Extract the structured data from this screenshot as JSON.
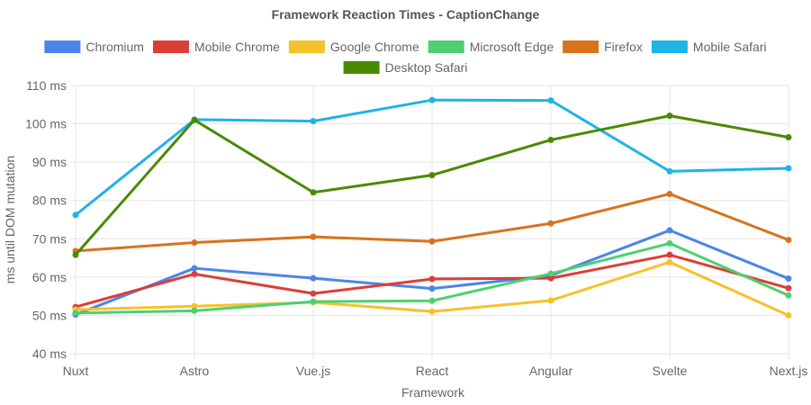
{
  "chart_data": {
    "type": "line",
    "title": "Framework Reaction Times - CaptionChange",
    "xlabel": "Framework",
    "ylabel": "ms until DOM mutation",
    "categories": [
      "Nuxt",
      "Astro",
      "Vue.js",
      "React",
      "Angular",
      "Svelte",
      "Next.js"
    ],
    "ylim": [
      40,
      110
    ],
    "yticks": [
      40,
      50,
      60,
      70,
      80,
      90,
      100,
      110
    ],
    "ytick_labels": [
      "40 ms",
      "50 ms",
      "60 ms",
      "70 ms",
      "80 ms",
      "90 ms",
      "100 ms",
      "110 ms"
    ],
    "grid": true,
    "legend_position": "top",
    "series": [
      {
        "name": "Chromium",
        "color": "#4a86e8",
        "values": [
          50.2,
          62.3,
          59.7,
          57.0,
          60.4,
          72.2,
          59.6
        ]
      },
      {
        "name": "Mobile Chrome",
        "color": "#dc3e37",
        "values": [
          52.2,
          60.8,
          55.7,
          59.5,
          59.7,
          65.8,
          57.1
        ]
      },
      {
        "name": "Google Chrome",
        "color": "#f6c12a",
        "values": [
          51.5,
          52.4,
          53.4,
          51.0,
          53.9,
          63.9,
          50.0
        ]
      },
      {
        "name": "Microsoft Edge",
        "color": "#4fd070",
        "values": [
          50.6,
          51.2,
          53.6,
          53.8,
          60.9,
          68.8,
          55.2
        ]
      },
      {
        "name": "Firefox",
        "color": "#d8731c",
        "values": [
          66.8,
          69.0,
          70.5,
          69.3,
          74.0,
          81.7,
          69.7
        ]
      },
      {
        "name": "Mobile Safari",
        "color": "#1fb3e8",
        "values": [
          76.2,
          101.1,
          100.7,
          106.2,
          106.1,
          87.6,
          88.4
        ]
      },
      {
        "name": "Desktop Safari",
        "color": "#4a8a00",
        "values": [
          65.8,
          101.0,
          82.1,
          86.6,
          95.8,
          102.1,
          96.5
        ]
      }
    ]
  }
}
